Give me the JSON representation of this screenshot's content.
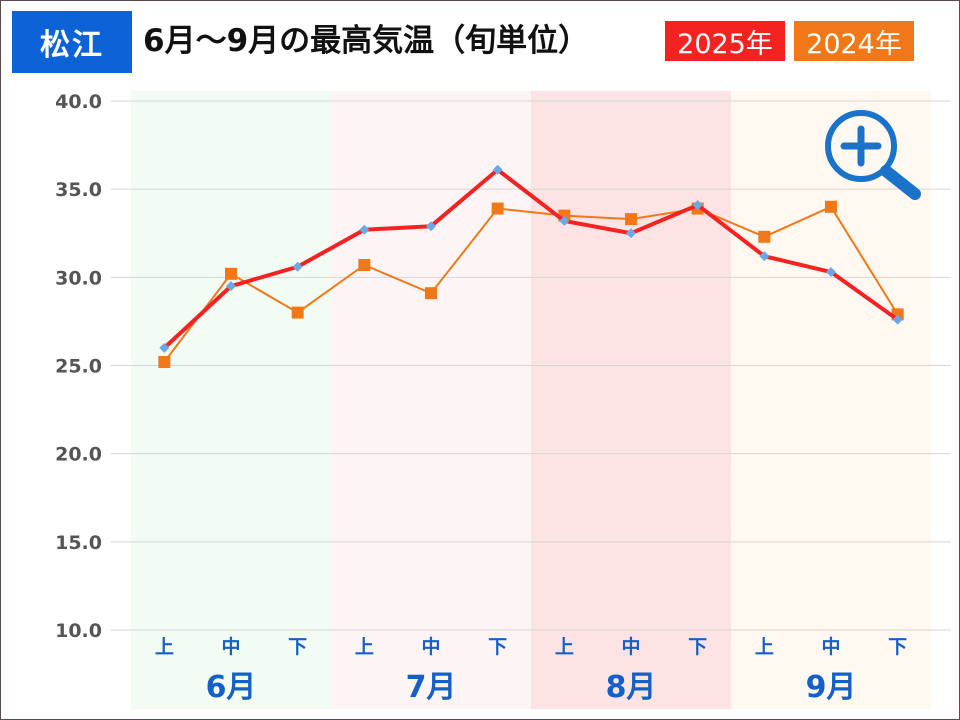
{
  "header": {
    "city": "松江",
    "title": "6月～9月の最高気温（旬単位）"
  },
  "colors": {
    "city_badge": "#0d63d6",
    "series_2025": "#f52222",
    "series_2025_marker": "#6aa8e8",
    "series_2024": "#f07818",
    "month_label": "#1560c8",
    "zoom_icon": "#1a73c8"
  },
  "chart_data": {
    "type": "line",
    "categories": [
      "上",
      "中",
      "下",
      "上",
      "中",
      "下",
      "上",
      "中",
      "下",
      "上",
      "中",
      "下"
    ],
    "groups": [
      {
        "label": "6月",
        "color": "#f3fcf3"
      },
      {
        "label": "7月",
        "color": "#fdf5f5"
      },
      {
        "label": "8月",
        "color": "#fde4e4"
      },
      {
        "label": "9月",
        "color": "#fff8f0"
      }
    ],
    "series": [
      {
        "name": "2025年",
        "values": [
          26.0,
          29.5,
          30.6,
          32.7,
          32.9,
          36.1,
          33.2,
          32.5,
          34.1,
          31.2,
          30.3,
          27.6
        ]
      },
      {
        "name": "2024年",
        "values": [
          25.2,
          30.2,
          28.0,
          30.7,
          29.1,
          33.9,
          33.5,
          33.3,
          33.9,
          32.3,
          34.0,
          27.9
        ]
      }
    ],
    "ylim": [
      10.0,
      40.0
    ],
    "yticks": [
      "10.0",
      "15.0",
      "20.0",
      "25.0",
      "30.0",
      "35.0",
      "40.0"
    ],
    "grid": true,
    "icons": [
      "zoom-in-icon"
    ]
  }
}
